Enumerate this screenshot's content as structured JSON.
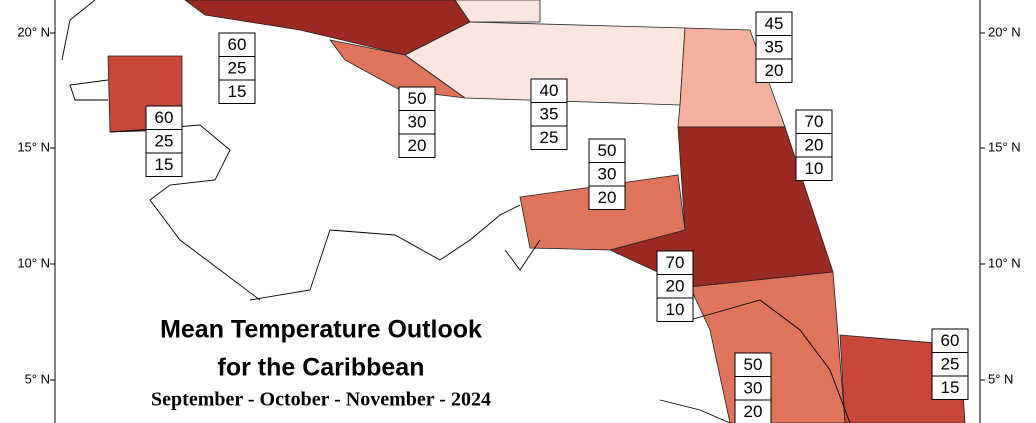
{
  "title": [
    "Mean Temperature Outlook",
    "for the Caribbean"
  ],
  "subtitle": "September - October - November - 2024",
  "lat_labels": [
    "20° N",
    "15° N",
    "10° N",
    "5° N"
  ],
  "regions": [
    {
      "probabilities": [
        60,
        25,
        15
      ]
    },
    {
      "probabilities": [
        60,
        25,
        15
      ]
    },
    {
      "probabilities": [
        50,
        30,
        20
      ]
    },
    {
      "probabilities": [
        40,
        35,
        25
      ]
    },
    {
      "probabilities": [
        45,
        35,
        20
      ]
    },
    {
      "probabilities": [
        70,
        20,
        10
      ]
    },
    {
      "probabilities": [
        50,
        30,
        20
      ]
    },
    {
      "probabilities": [
        70,
        20,
        10
      ]
    },
    {
      "probabilities": [
        50,
        30,
        20
      ]
    },
    {
      "probabilities": [
        60,
        25,
        15
      ]
    }
  ]
}
